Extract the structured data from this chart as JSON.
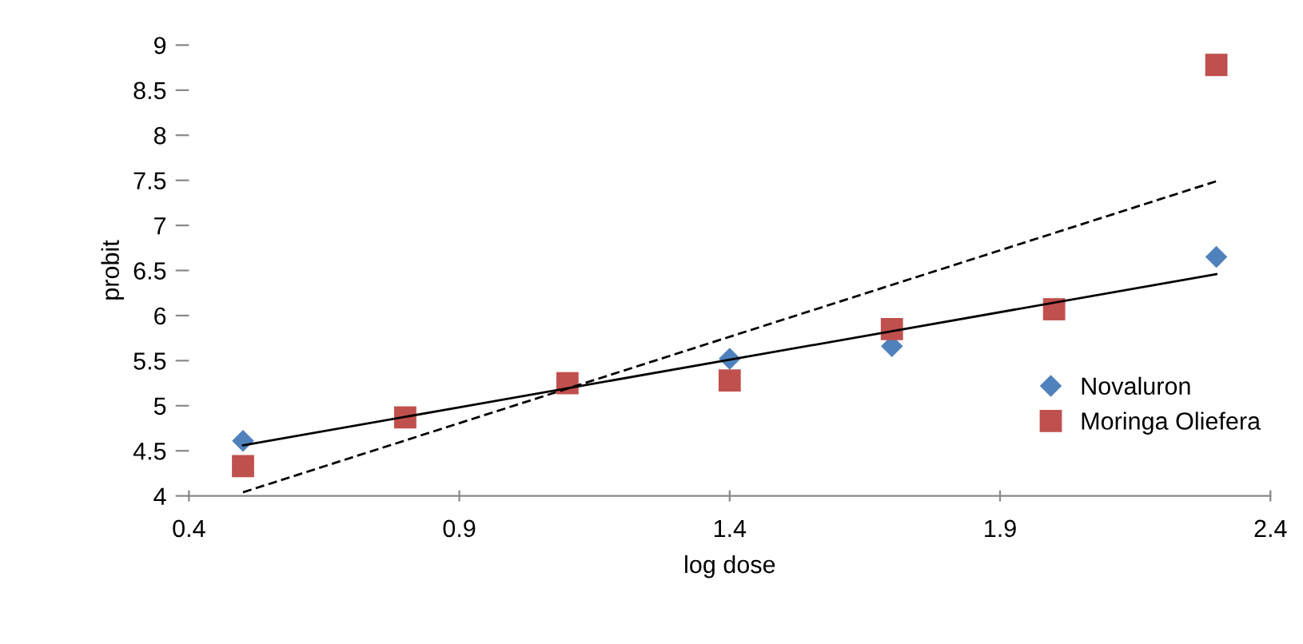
{
  "chart_data": {
    "type": "scatter",
    "xlabel": "log dose",
    "ylabel": "probit",
    "xlim": [
      0.4,
      2.4
    ],
    "xticks": [
      0.4,
      0.9,
      1.4,
      1.9,
      2.4
    ],
    "ylim": [
      4,
      9
    ],
    "yticks": [
      4,
      4.5,
      5,
      5.5,
      6,
      6.5,
      7,
      7.5,
      8,
      8.5,
      9
    ],
    "grid": false,
    "legend": "right",
    "series": [
      {
        "name": "Novaluron",
        "color": "#4f81bd",
        "marker": "diamond",
        "x": [
          0.5,
          1.4,
          1.7,
          2.3
        ],
        "values": [
          4.61,
          5.52,
          5.66,
          6.65
        ]
      },
      {
        "name": "Moringa Oliefera",
        "color": "#c0504d",
        "marker": "square",
        "x": [
          0.5,
          0.8,
          1.1,
          1.4,
          1.7,
          2.0,
          2.3
        ],
        "values": [
          4.33,
          4.87,
          5.25,
          5.28,
          5.85,
          6.07,
          8.78
        ]
      },
      {
        "type": "line",
        "color": "#000000",
        "marker": "none",
        "x": [
          0.5,
          2.3
        ],
        "values": [
          4.56,
          6.46
        ]
      },
      {
        "type": "line",
        "color": "#000000",
        "marker": "none",
        "line_style": "dashed",
        "x": [
          0.5,
          2.3
        ],
        "values": [
          4.04,
          7.49
        ]
      }
    ]
  }
}
